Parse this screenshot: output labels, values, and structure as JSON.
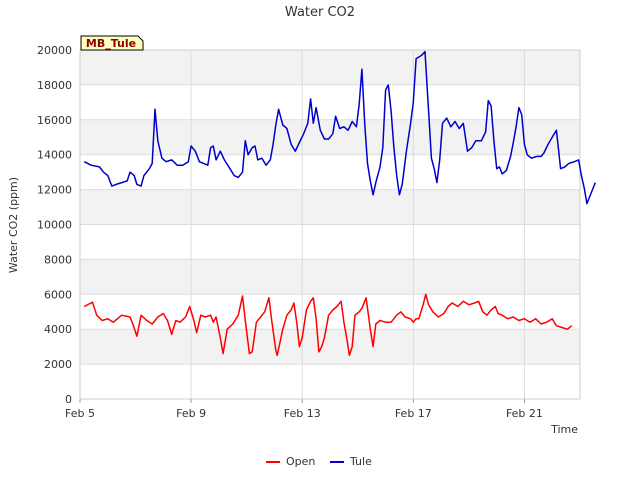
{
  "chart_data": {
    "type": "line",
    "title": "Water CO2",
    "xlabel": "Time",
    "ylabel": "Water CO2 (ppm)",
    "site_label": "MB_Tule",
    "x_unit": "day of February",
    "xlim": [
      5,
      23
    ],
    "ylim": [
      0,
      20000
    ],
    "yticks": [
      0,
      2000,
      4000,
      6000,
      8000,
      10000,
      12000,
      14000,
      16000,
      18000,
      20000
    ],
    "xticks": [
      {
        "value": 5,
        "label": "Feb 5"
      },
      {
        "value": 9,
        "label": "Feb 9"
      },
      {
        "value": 13,
        "label": "Feb 13"
      },
      {
        "value": 17,
        "label": "Feb 17"
      },
      {
        "value": 21,
        "label": "Feb 21"
      }
    ],
    "grid": true,
    "legend_position": "bottom",
    "series": [
      {
        "name": "Open",
        "color": "#ff0000",
        "points": [
          [
            5.15,
            5300
          ],
          [
            5.45,
            5550
          ],
          [
            5.6,
            4800
          ],
          [
            5.8,
            4500
          ],
          [
            6.0,
            4600
          ],
          [
            6.2,
            4400
          ],
          [
            6.5,
            4800
          ],
          [
            6.8,
            4700
          ],
          [
            6.9,
            4300
          ],
          [
            7.05,
            3600
          ],
          [
            7.2,
            4800
          ],
          [
            7.4,
            4500
          ],
          [
            7.6,
            4300
          ],
          [
            7.8,
            4700
          ],
          [
            8.0,
            4900
          ],
          [
            8.15,
            4500
          ],
          [
            8.3,
            3700
          ],
          [
            8.45,
            4500
          ],
          [
            8.6,
            4400
          ],
          [
            8.8,
            4700
          ],
          [
            8.95,
            5300
          ],
          [
            9.1,
            4500
          ],
          [
            9.2,
            3800
          ],
          [
            9.35,
            4800
          ],
          [
            9.5,
            4700
          ],
          [
            9.7,
            4800
          ],
          [
            9.8,
            4400
          ],
          [
            9.9,
            4700
          ],
          [
            10.05,
            3500
          ],
          [
            10.15,
            2600
          ],
          [
            10.3,
            4000
          ],
          [
            10.5,
            4300
          ],
          [
            10.7,
            4800
          ],
          [
            10.85,
            5900
          ],
          [
            10.95,
            4500
          ],
          [
            11.1,
            2600
          ],
          [
            11.2,
            2700
          ],
          [
            11.35,
            4400
          ],
          [
            11.5,
            4700
          ],
          [
            11.65,
            5000
          ],
          [
            11.8,
            5800
          ],
          [
            11.9,
            4500
          ],
          [
            12.05,
            2800
          ],
          [
            12.1,
            2500
          ],
          [
            12.3,
            4000
          ],
          [
            12.45,
            4800
          ],
          [
            12.6,
            5100
          ],
          [
            12.7,
            5500
          ],
          [
            12.8,
            4400
          ],
          [
            12.9,
            3000
          ],
          [
            13.0,
            3500
          ],
          [
            13.15,
            5100
          ],
          [
            13.3,
            5600
          ],
          [
            13.4,
            5800
          ],
          [
            13.5,
            4600
          ],
          [
            13.6,
            2700
          ],
          [
            13.7,
            3000
          ],
          [
            13.8,
            3500
          ],
          [
            13.95,
            4800
          ],
          [
            14.1,
            5100
          ],
          [
            14.25,
            5300
          ],
          [
            14.4,
            5600
          ],
          [
            14.5,
            4400
          ],
          [
            14.6,
            3500
          ],
          [
            14.7,
            2500
          ],
          [
            14.8,
            3000
          ],
          [
            14.9,
            4800
          ],
          [
            15.05,
            5000
          ],
          [
            15.15,
            5200
          ],
          [
            15.3,
            5800
          ],
          [
            15.45,
            4000
          ],
          [
            15.55,
            3000
          ],
          [
            15.65,
            4300
          ],
          [
            15.8,
            4500
          ],
          [
            16.0,
            4400
          ],
          [
            16.2,
            4400
          ],
          [
            16.4,
            4800
          ],
          [
            16.55,
            5000
          ],
          [
            16.7,
            4700
          ],
          [
            16.9,
            4600
          ],
          [
            17.0,
            4400
          ],
          [
            17.1,
            4600
          ],
          [
            17.2,
            4600
          ],
          [
            17.35,
            5400
          ],
          [
            17.45,
            6000
          ],
          [
            17.55,
            5400
          ],
          [
            17.7,
            5000
          ],
          [
            17.9,
            4700
          ],
          [
            18.1,
            4900
          ],
          [
            18.25,
            5300
          ],
          [
            18.4,
            5500
          ],
          [
            18.6,
            5300
          ],
          [
            18.8,
            5600
          ],
          [
            19.0,
            5400
          ],
          [
            19.2,
            5500
          ],
          [
            19.35,
            5600
          ],
          [
            19.5,
            5000
          ],
          [
            19.65,
            4800
          ],
          [
            19.8,
            5100
          ],
          [
            19.95,
            5300
          ],
          [
            20.05,
            4900
          ],
          [
            20.2,
            4800
          ],
          [
            20.4,
            4600
          ],
          [
            20.6,
            4700
          ],
          [
            20.8,
            4500
          ],
          [
            21.0,
            4600
          ],
          [
            21.2,
            4400
          ],
          [
            21.4,
            4600
          ],
          [
            21.6,
            4300
          ],
          [
            21.8,
            4400
          ],
          [
            22.0,
            4600
          ],
          [
            22.15,
            4200
          ],
          [
            22.35,
            4100
          ],
          [
            22.55,
            4000
          ],
          [
            22.7,
            4200
          ]
        ]
      },
      {
        "name": "Tule",
        "color": "#0000cc",
        "points": [
          [
            5.15,
            13600
          ],
          [
            5.4,
            13400
          ],
          [
            5.7,
            13300
          ],
          [
            5.85,
            13000
          ],
          [
            6.0,
            12800
          ],
          [
            6.15,
            12200
          ],
          [
            6.3,
            12300
          ],
          [
            6.5,
            12400
          ],
          [
            6.7,
            12500
          ],
          [
            6.8,
            13000
          ],
          [
            6.95,
            12800
          ],
          [
            7.05,
            12300
          ],
          [
            7.2,
            12200
          ],
          [
            7.3,
            12800
          ],
          [
            7.5,
            13200
          ],
          [
            7.6,
            13500
          ],
          [
            7.7,
            16600
          ],
          [
            7.8,
            14800
          ],
          [
            7.95,
            13800
          ],
          [
            8.1,
            13600
          ],
          [
            8.3,
            13700
          ],
          [
            8.5,
            13400
          ],
          [
            8.7,
            13400
          ],
          [
            8.9,
            13600
          ],
          [
            9.0,
            14500
          ],
          [
            9.15,
            14200
          ],
          [
            9.3,
            13600
          ],
          [
            9.45,
            13500
          ],
          [
            9.6,
            13400
          ],
          [
            9.7,
            14400
          ],
          [
            9.8,
            14500
          ],
          [
            9.9,
            13700
          ],
          [
            10.05,
            14200
          ],
          [
            10.2,
            13700
          ],
          [
            10.4,
            13200
          ],
          [
            10.55,
            12800
          ],
          [
            10.7,
            12700
          ],
          [
            10.85,
            13000
          ],
          [
            10.95,
            14800
          ],
          [
            11.05,
            14000
          ],
          [
            11.2,
            14400
          ],
          [
            11.3,
            14500
          ],
          [
            11.4,
            13700
          ],
          [
            11.55,
            13800
          ],
          [
            11.7,
            13400
          ],
          [
            11.85,
            13700
          ],
          [
            11.95,
            14600
          ],
          [
            12.05,
            15700
          ],
          [
            12.15,
            16600
          ],
          [
            12.3,
            15700
          ],
          [
            12.45,
            15500
          ],
          [
            12.6,
            14600
          ],
          [
            12.75,
            14200
          ],
          [
            12.9,
            14700
          ],
          [
            13.05,
            15200
          ],
          [
            13.2,
            15800
          ],
          [
            13.3,
            17200
          ],
          [
            13.4,
            15800
          ],
          [
            13.5,
            16700
          ],
          [
            13.65,
            15400
          ],
          [
            13.8,
            14900
          ],
          [
            13.95,
            14900
          ],
          [
            14.1,
            15200
          ],
          [
            14.2,
            16200
          ],
          [
            14.35,
            15500
          ],
          [
            14.5,
            15600
          ],
          [
            14.65,
            15400
          ],
          [
            14.8,
            15900
          ],
          [
            14.95,
            15600
          ],
          [
            15.05,
            16900
          ],
          [
            15.15,
            18900
          ],
          [
            15.25,
            15800
          ],
          [
            15.35,
            13500
          ],
          [
            15.45,
            12500
          ],
          [
            15.55,
            11700
          ],
          [
            15.65,
            12400
          ],
          [
            15.8,
            13300
          ],
          [
            15.9,
            14400
          ],
          [
            16.0,
            17700
          ],
          [
            16.1,
            18000
          ],
          [
            16.2,
            16500
          ],
          [
            16.3,
            14400
          ],
          [
            16.4,
            12800
          ],
          [
            16.5,
            11700
          ],
          [
            16.6,
            12300
          ],
          [
            16.75,
            14200
          ],
          [
            16.9,
            15800
          ],
          [
            17.0,
            17000
          ],
          [
            17.1,
            19500
          ],
          [
            17.3,
            19700
          ],
          [
            17.42,
            19900
          ],
          [
            17.55,
            16500
          ],
          [
            17.65,
            13800
          ],
          [
            17.75,
            13200
          ],
          [
            17.85,
            12400
          ],
          [
            17.95,
            13700
          ],
          [
            18.05,
            15800
          ],
          [
            18.2,
            16100
          ],
          [
            18.35,
            15600
          ],
          [
            18.5,
            15900
          ],
          [
            18.65,
            15500
          ],
          [
            18.8,
            15800
          ],
          [
            18.95,
            14200
          ],
          [
            19.1,
            14400
          ],
          [
            19.25,
            14800
          ],
          [
            19.45,
            14800
          ],
          [
            19.6,
            15300
          ],
          [
            19.7,
            17100
          ],
          [
            19.8,
            16800
          ],
          [
            19.9,
            14800
          ],
          [
            20.0,
            13200
          ],
          [
            20.1,
            13300
          ],
          [
            20.2,
            12900
          ],
          [
            20.35,
            13100
          ],
          [
            20.5,
            13900
          ],
          [
            20.6,
            14700
          ],
          [
            20.7,
            15600
          ],
          [
            20.8,
            16700
          ],
          [
            20.9,
            16300
          ],
          [
            21.0,
            14600
          ],
          [
            21.1,
            14000
          ],
          [
            21.25,
            13800
          ],
          [
            21.45,
            13900
          ],
          [
            21.6,
            13900
          ],
          [
            21.7,
            14100
          ],
          [
            21.85,
            14600
          ],
          [
            22.0,
            15000
          ],
          [
            22.15,
            15400
          ],
          [
            22.3,
            13200
          ],
          [
            22.45,
            13300
          ],
          [
            22.6,
            13500
          ],
          [
            22.8,
            13600
          ],
          [
            22.95,
            13700
          ],
          [
            23.05,
            12800
          ],
          [
            23.15,
            12100
          ],
          [
            23.25,
            11200
          ],
          [
            23.4,
            11800
          ],
          [
            23.55,
            12400
          ]
        ]
      }
    ]
  }
}
